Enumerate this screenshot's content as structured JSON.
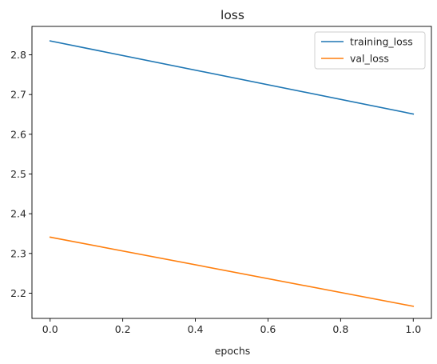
{
  "chart_data": {
    "type": "line",
    "title": "loss",
    "xlabel": "epochs",
    "ylabel": "",
    "xlim": [
      -0.05,
      1.05
    ],
    "ylim": [
      2.1365,
      2.8715
    ],
    "x_ticks": [
      0.0,
      0.2,
      0.4,
      0.6,
      0.8,
      1.0
    ],
    "x_tick_labels": [
      "0.0",
      "0.2",
      "0.4",
      "0.6",
      "0.8",
      "1.0"
    ],
    "y_ticks": [
      2.2,
      2.3,
      2.4,
      2.5,
      2.6,
      2.7,
      2.8
    ],
    "y_tick_labels": [
      "2.2",
      "2.3",
      "2.4",
      "2.5",
      "2.6",
      "2.7",
      "2.8"
    ],
    "x": [
      0,
      1
    ],
    "series": [
      {
        "name": "training_loss",
        "values": [
          2.835,
          2.651
        ],
        "color": "#1f77b4"
      },
      {
        "name": "val_loss",
        "values": [
          2.341,
          2.167
        ],
        "color": "#ff7f0e"
      }
    ],
    "grid": false,
    "legend_position": "top-right"
  }
}
